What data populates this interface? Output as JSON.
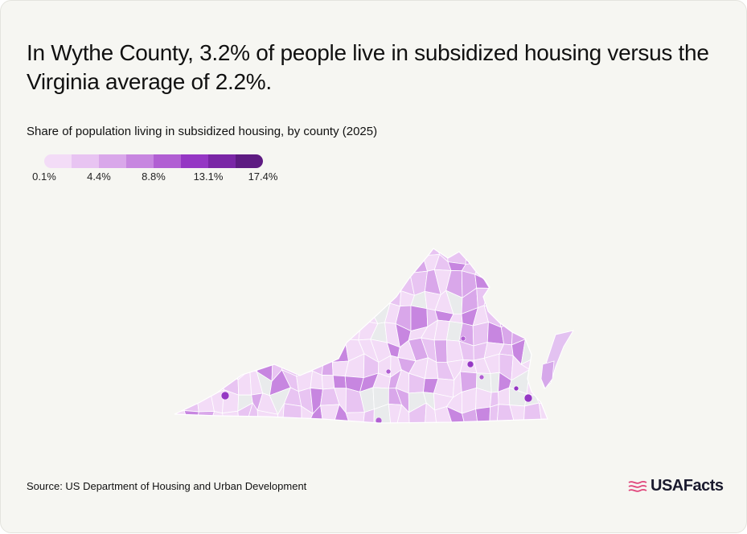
{
  "title": "In Wythe County, 3.2% of people live in subsidized housing versus the Virginia average of 2.2%.",
  "subtitle": "Share of population living in subsidized housing, by county (2025)",
  "legend": {
    "colors": [
      "#f3dcf7",
      "#e8c4f2",
      "#d9a7ea",
      "#c786e0",
      "#b15fd3",
      "#9537c4",
      "#7a26a6",
      "#5e1b82"
    ],
    "labels": [
      "0.1%",
      "4.4%",
      "8.8%",
      "13.1%",
      "17.4%"
    ]
  },
  "map": {
    "no_data_color": "#e9ebec",
    "highlight_county": "Wythe County",
    "highlight_value": "3.2%",
    "state_average": "2.2%"
  },
  "source": "Source: US Department of Housing and Urban Development",
  "brand": {
    "name": "USAFacts"
  },
  "colors": {
    "background": "#f6f6f2",
    "accent": "#e0457b"
  }
}
